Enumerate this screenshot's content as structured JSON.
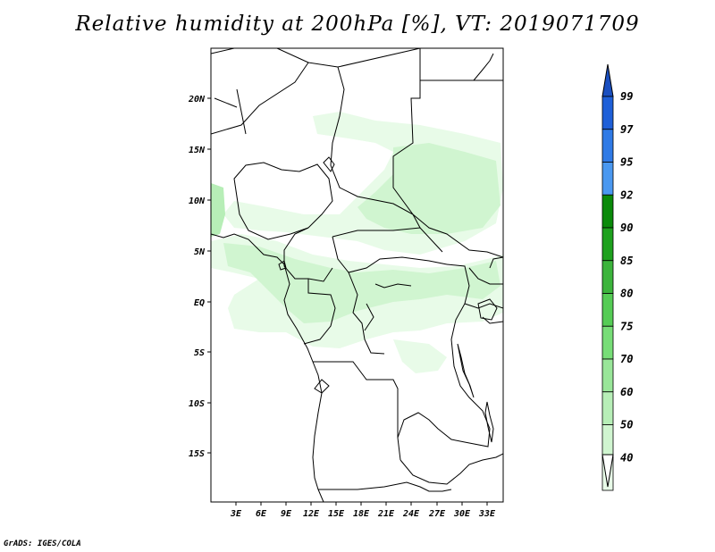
{
  "title": "Relative humidity at 200hPa [%], VT: 2019071709",
  "credit": "GrADS: IGES/COLA",
  "map": {
    "variable": "Relative humidity",
    "level": "200hPa",
    "units": "%",
    "valid_time": "2019071709",
    "lat_labels": [
      "20N",
      "15N",
      "10N",
      "5N",
      "EQ",
      "5S",
      "10S",
      "15S"
    ],
    "lon_labels": [
      "3E",
      "6E",
      "9E",
      "12E",
      "15E",
      "18E",
      "21E",
      "24E",
      "27E",
      "30E",
      "33E"
    ]
  },
  "colorbar": {
    "levels": [
      "99",
      "97",
      "95",
      "92",
      "90",
      "85",
      "80",
      "75",
      "70",
      "60",
      "50",
      "40"
    ],
    "colors": [
      "#1e5fd8",
      "#2f7ae6",
      "#4a98f0",
      "#0a8a0a",
      "#1ea11e",
      "#3cb43c",
      "#55cc55",
      "#77dd77",
      "#99e699",
      "#b7eeb7",
      "#d0f5d0",
      "#e8fbe8"
    ],
    "top_color": "#1a4fc0",
    "bottom_color": "#ffffff"
  }
}
